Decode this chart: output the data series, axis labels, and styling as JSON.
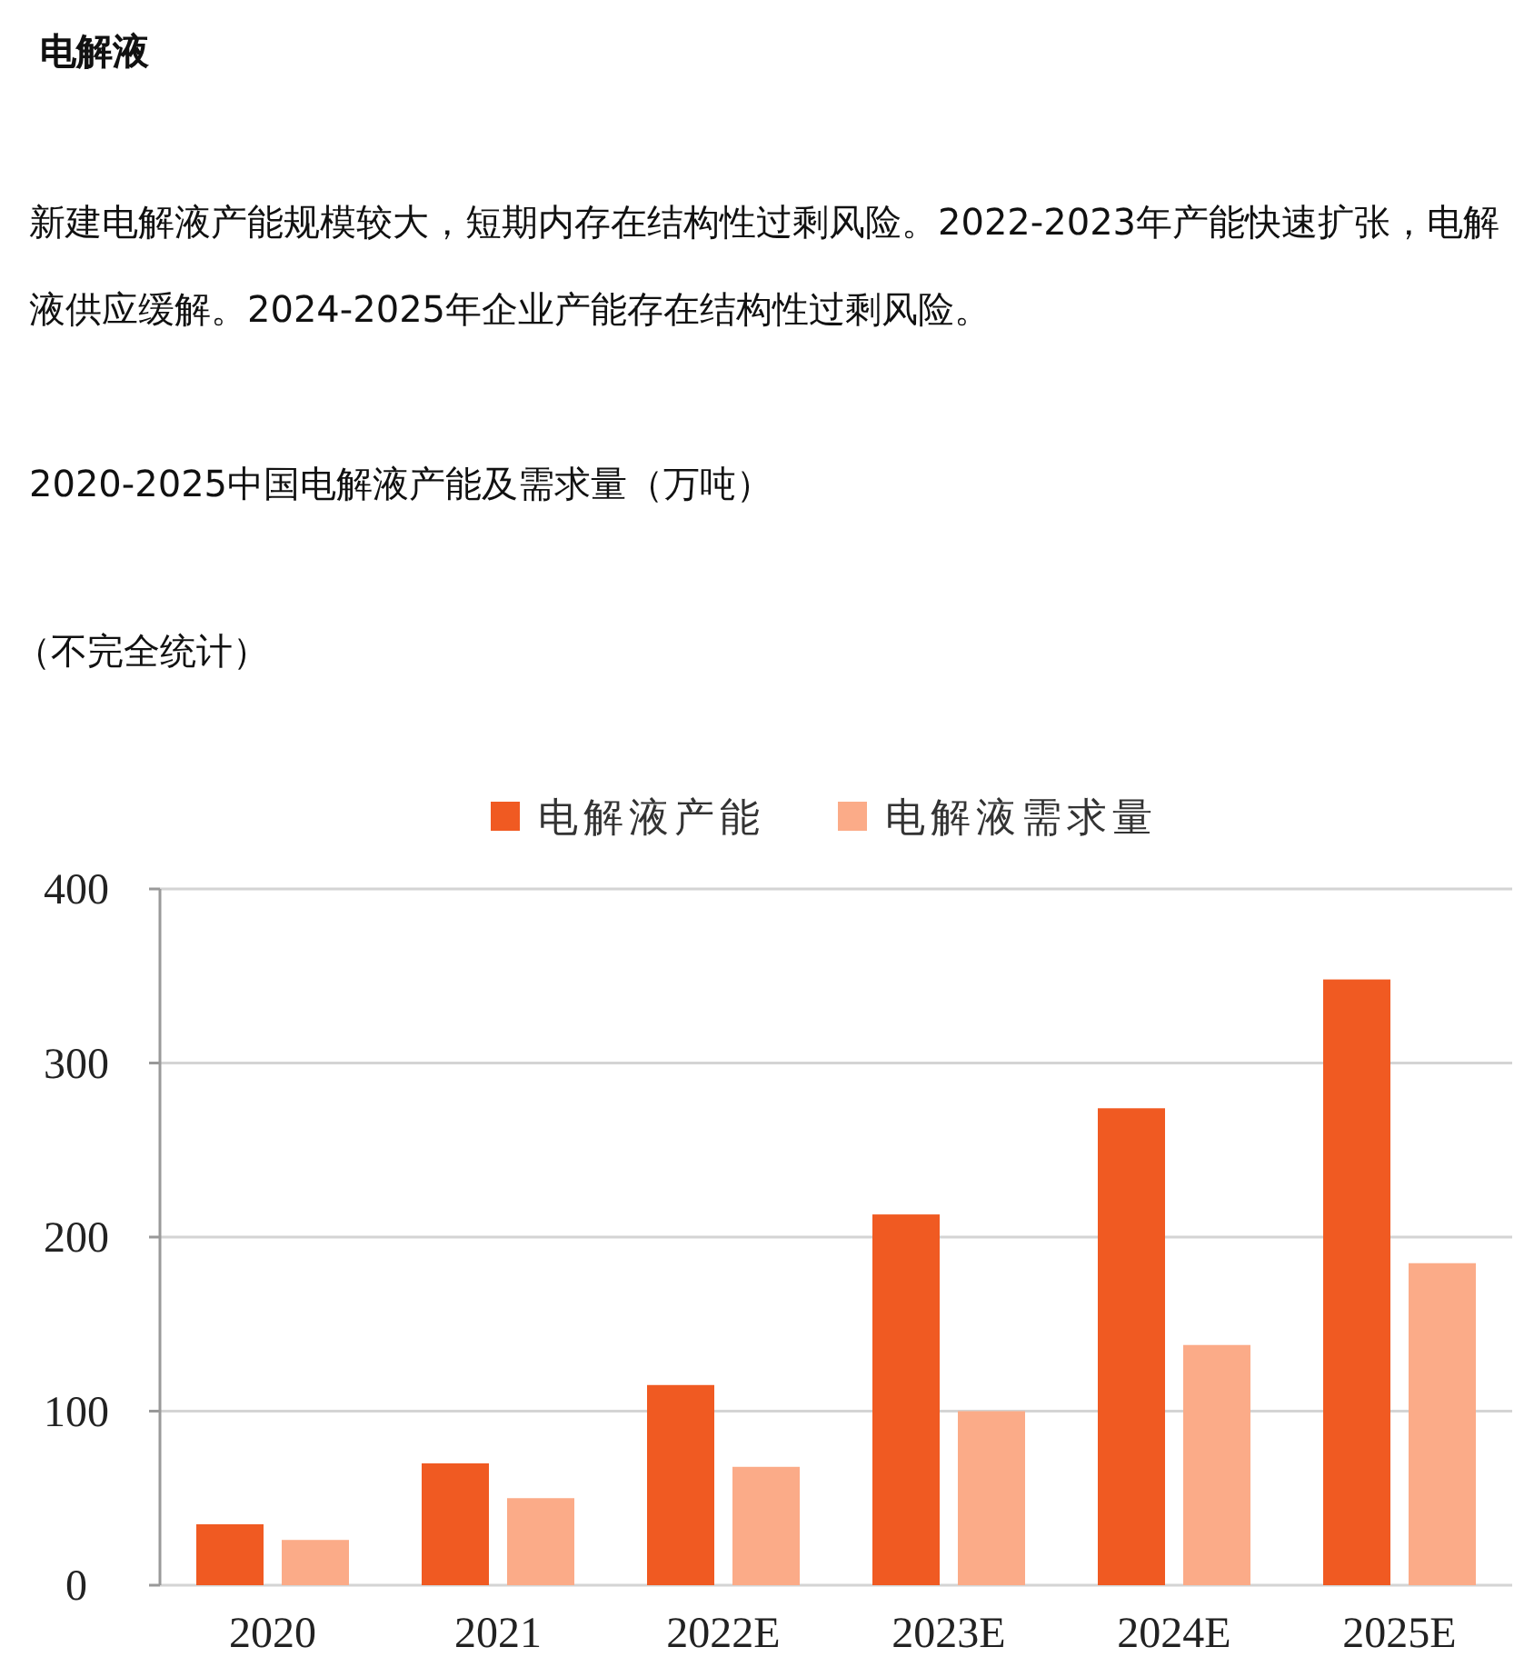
{
  "chart_data": {
    "type": "bar",
    "title": "2020-2025中国电解液产能及需求量（万吨）",
    "subtitle": "（不完全统计）",
    "annotations": [
      "电解液",
      "新建电解液产能规模较大，短期内存在结构性过剩风险。2022-2023年产能快速扩张，电解液供应缓解。2024-2025年企业产能存在结构性过剩风险。"
    ],
    "categories": [
      "2020",
      "2021",
      "2022E",
      "2023E",
      "2024E",
      "2025E"
    ],
    "series": [
      {
        "name": "电解液产能",
        "color": "#f05a22",
        "values": [
          35,
          70,
          115,
          213,
          274,
          348
        ]
      },
      {
        "name": "电解液需求量",
        "color": "#fbab88",
        "values": [
          26,
          50,
          68,
          100,
          138,
          185
        ]
      }
    ],
    "ylim": [
      0,
      400
    ],
    "yticks": [
      0,
      100,
      200,
      300,
      400
    ],
    "grid": "y",
    "legend": "top"
  }
}
